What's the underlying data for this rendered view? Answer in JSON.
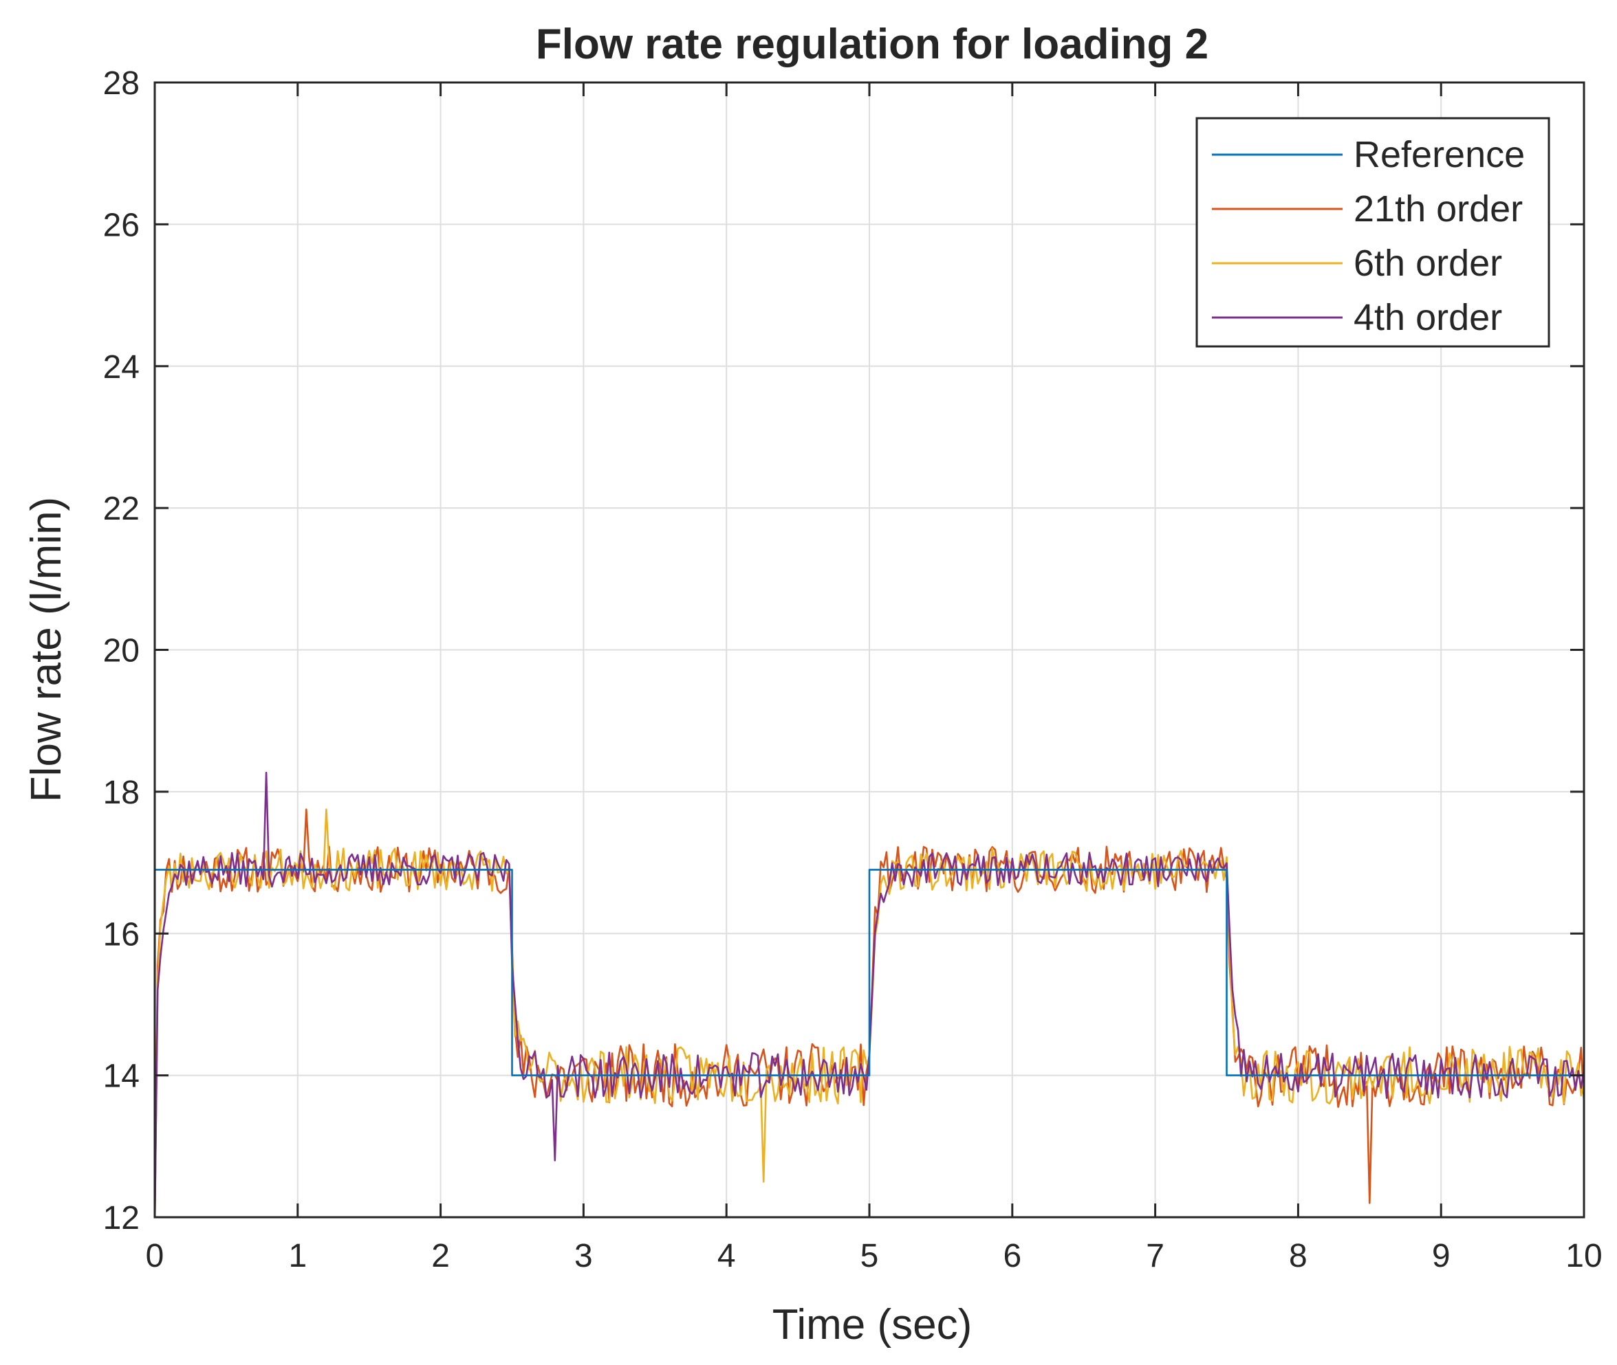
{
  "chart_data": {
    "type": "line",
    "title": "Flow rate regulation for loading 2",
    "xlabel": "Time (sec)",
    "ylabel": "Flow rate (l/min)",
    "xlim": [
      0,
      10
    ],
    "ylim": [
      12,
      28
    ],
    "xticks": [
      0,
      1,
      2,
      3,
      4,
      5,
      6,
      7,
      8,
      9,
      10
    ],
    "yticks": [
      12,
      14,
      16,
      18,
      20,
      22,
      24,
      26,
      28
    ],
    "grid": true,
    "legend_position": "top-right",
    "reference_levels": {
      "high": 16.9,
      "low": 14.0
    },
    "step_times": [
      2.5,
      5.0,
      7.5
    ],
    "series": [
      {
        "name": "Reference",
        "color": "#0072BD",
        "x": [
          0,
          0,
          2.5,
          2.5,
          5.0,
          5.0,
          7.5,
          7.5,
          10
        ],
        "y": [
          14.0,
          16.9,
          16.9,
          14.0,
          14.0,
          16.9,
          16.9,
          14.0,
          14.0
        ]
      },
      {
        "name": "21th order",
        "color": "#D95319",
        "noise": 0.33,
        "seed": 11,
        "peak_up": 17.75,
        "peak_down": 12.2
      },
      {
        "name": "6th order",
        "color": "#EDB120",
        "noise": 0.3,
        "seed": 23,
        "peak_up": 17.75,
        "peak_down": 12.5
      },
      {
        "name": "4th order",
        "color": "#7E2F8E",
        "noise": 0.24,
        "seed": 37,
        "peak_up": 18.27,
        "peak_down": 12.8
      }
    ]
  }
}
